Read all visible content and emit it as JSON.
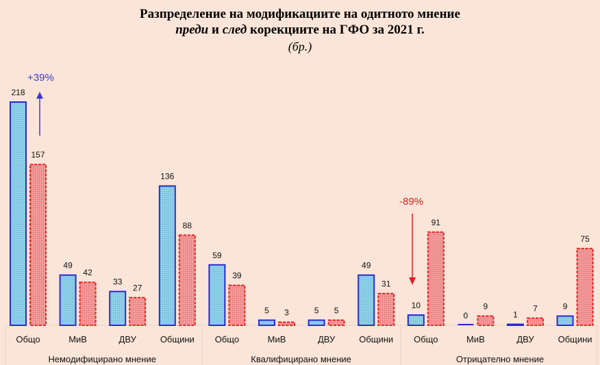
{
  "title": {
    "line1": "Разпределение на модификациите на одитното мнение",
    "line2_em1": "преди",
    "line2_mid": " и ",
    "line2_em2": "след",
    "line2_rest": " корекциите на ГФО за 2021 г.",
    "line3": "(бр.)"
  },
  "chart_data": {
    "type": "bar",
    "title": "Разпределение на модификациите на одитното мнение преди и след корекциите на ГФО за 2021 г. (бр.)",
    "groups": [
      {
        "name": "Немодифицирано мнение",
        "categories": [
          "Общо",
          "МиВ",
          "ДВУ",
          "Общини"
        ]
      },
      {
        "name": "Квалифицирано мнение",
        "categories": [
          "Общо",
          "МиВ",
          "ДВУ",
          "Общини"
        ]
      },
      {
        "name": "Отрицателно мнение",
        "categories": [
          "Общо",
          "МиВ",
          "ДВУ",
          "Общини"
        ]
      }
    ],
    "series": [
      {
        "name": "преди",
        "color": "#7ec8e3",
        "border": "#2a2acc",
        "values": [
          218,
          49,
          33,
          136,
          59,
          5,
          5,
          49,
          10,
          0,
          1,
          9
        ]
      },
      {
        "name": "след",
        "color": "#f08080",
        "border": "#e82020",
        "values": [
          157,
          42,
          27,
          88,
          39,
          3,
          5,
          31,
          91,
          9,
          7,
          75
        ]
      }
    ],
    "ylim": [
      0,
      230
    ],
    "grid": false,
    "annotations": [
      {
        "text": "+39%",
        "color": "#3a3ac8",
        "direction": "up",
        "category_index": 0
      },
      {
        "text": "-89%",
        "color": "#e02020",
        "direction": "down",
        "category_index": 8
      }
    ]
  }
}
